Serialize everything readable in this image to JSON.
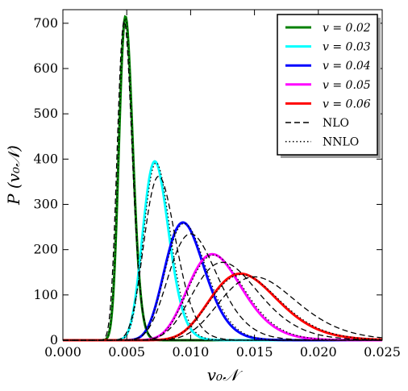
{
  "chart_data": {
    "type": "line",
    "xlabel": "v₀𝒩",
    "ylabel": "P (v₀𝒩)",
    "xlim": [
      0.0,
      0.025
    ],
    "ylim": [
      0,
      730
    ],
    "x_ticks": [
      "0.000",
      "0.005",
      "0.010",
      "0.015",
      "0.020",
      "0.025"
    ],
    "y_ticks": [
      "0",
      "100",
      "200",
      "300",
      "400",
      "500",
      "600",
      "700"
    ],
    "x_tick_values": [
      0.0,
      0.005,
      0.01,
      0.015,
      0.02,
      0.025
    ],
    "y_tick_values": [
      0,
      100,
      200,
      300,
      400,
      500,
      600,
      700
    ],
    "grid": false,
    "legend_position": "top-right",
    "series": [
      {
        "name": "v = 0.02",
        "color": "#008000",
        "style": "solid",
        "curve": "lognormal",
        "peak_x": 0.0049,
        "peak_y": 715,
        "sigma": 0.11
      },
      {
        "name": "v = 0.03",
        "color": "#00ffff",
        "style": "solid",
        "curve": "lognormal",
        "peak_x": 0.0072,
        "peak_y": 395,
        "sigma": 0.14
      },
      {
        "name": "v = 0.04",
        "color": "#0000ff",
        "style": "solid",
        "curve": "lognormal",
        "peak_x": 0.0094,
        "peak_y": 260,
        "sigma": 0.165
      },
      {
        "name": "v = 0.05",
        "color": "#ff00ff",
        "style": "solid",
        "curve": "lognormal",
        "peak_x": 0.0117,
        "peak_y": 190,
        "sigma": 0.18
      },
      {
        "name": "v = 0.06",
        "color": "#ff0000",
        "style": "solid",
        "curve": "lognormal",
        "peak_x": 0.0139,
        "peak_y": 147,
        "sigma": 0.19
      },
      {
        "name": "NLO",
        "color": "#000000",
        "style": "dashed",
        "legend_only": true
      },
      {
        "name": "NNLO",
        "color": "#000000",
        "style": "dotted",
        "legend_only": true
      }
    ],
    "reference_curves": [
      {
        "style": "dashed",
        "peak_x": 0.0048,
        "peak_y": 705,
        "sigma": 0.12
      },
      {
        "style": "dashed",
        "peak_x": 0.0075,
        "peak_y": 362,
        "sigma": 0.165
      },
      {
        "style": "dashed",
        "peak_x": 0.01,
        "peak_y": 235,
        "sigma": 0.19
      },
      {
        "style": "dashed",
        "peak_x": 0.0125,
        "peak_y": 172,
        "sigma": 0.205
      },
      {
        "style": "dashed",
        "peak_x": 0.015,
        "peak_y": 140,
        "sigma": 0.2
      },
      {
        "style": "dotted",
        "peak_x": 0.0049,
        "peak_y": 712,
        "sigma": 0.112
      },
      {
        "style": "dotted",
        "peak_x": 0.0073,
        "peak_y": 392,
        "sigma": 0.142
      },
      {
        "style": "dotted",
        "peak_x": 0.0095,
        "peak_y": 258,
        "sigma": 0.168
      },
      {
        "style": "dotted",
        "peak_x": 0.0118,
        "peak_y": 188,
        "sigma": 0.183
      },
      {
        "style": "dotted",
        "peak_x": 0.014,
        "peak_y": 145,
        "sigma": 0.193
      }
    ]
  }
}
